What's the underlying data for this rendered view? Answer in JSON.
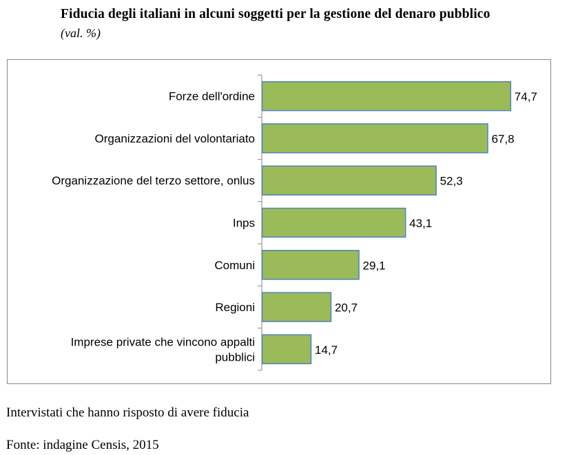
{
  "title": "Fiducia degli italiani in alcuni soggetti per la gestione del denaro pubblico",
  "subtitle": "(val. %)",
  "note": "Intervistati che hanno risposto di avere fiducia",
  "source": "Fonte: indagine Censis, 2015",
  "colors": {
    "bar_fill": "#9BBB59",
    "bar_stroke": "#4F81BD",
    "axis": "#868686"
  },
  "chart_data": {
    "type": "bar",
    "orientation": "horizontal",
    "categories": [
      "Forze dell'ordine",
      "Organizzazioni del volontariato",
      "Organizzazione del terzo settore, onlus",
      "Inps",
      "Comuni",
      "Regioni",
      "Imprese private che vincono appalti pubblici"
    ],
    "category_lines": [
      [
        "Forze dell'ordine"
      ],
      [
        "Organizzazioni del volontariato"
      ],
      [
        "Organizzazione del terzo settore, onlus"
      ],
      [
        "Inps"
      ],
      [
        "Comuni"
      ],
      [
        "Regioni"
      ],
      [
        "Imprese private che vincono appalti",
        "pubblici"
      ]
    ],
    "values": [
      74.7,
      67.8,
      52.3,
      43.1,
      29.1,
      20.7,
      14.7
    ],
    "value_labels": [
      "74,7",
      "67,8",
      "52,3",
      "43,1",
      "29,1",
      "20,7",
      "14,7"
    ],
    "xlim": [
      0,
      80
    ],
    "grid": false,
    "legend": "none"
  }
}
